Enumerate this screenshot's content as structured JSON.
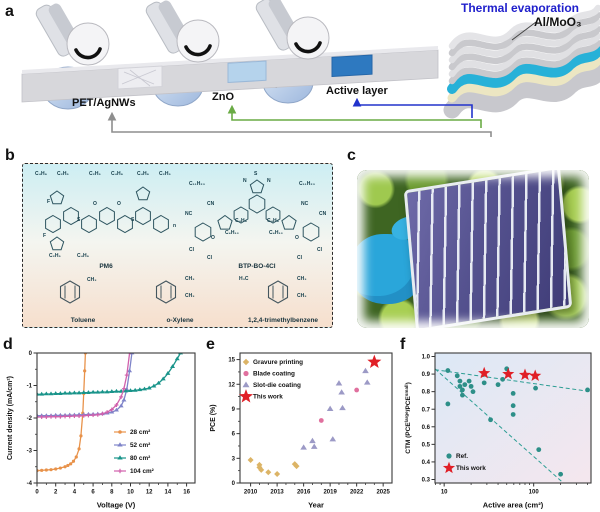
{
  "panels": {
    "a": {
      "label": "a",
      "annotations": {
        "thermal": "Thermal evaporation",
        "almoo3": "Al/MoO₃",
        "pet": "PET/AgNWs",
        "zno": "ZnO",
        "active": "Active layer"
      }
    },
    "b": {
      "label": "b",
      "molecules": {
        "pm6": {
          "name": "PM6",
          "labels": [
            "C₄H₉",
            "C₂H₅",
            "C₂H₅",
            "C₄H₉",
            "C₄H₉",
            "C₂H₅",
            "F",
            "O",
            "O",
            "S",
            "S",
            "F",
            "C₂H₅",
            "C₄H₉",
            "n"
          ]
        },
        "btp": {
          "name": "BTP-BO-4Cl",
          "labels": [
            "C₁₁H₂₃",
            "C₁₁H₂₃",
            "S",
            "N",
            "N",
            "CN",
            "NC",
            "NC",
            "CN",
            "C₄H₉",
            "C₄H₉",
            "C₆H₁₃",
            "C₆H₁₃",
            "O",
            "O",
            "Cl",
            "Cl",
            "Cl",
            "Cl"
          ]
        },
        "toluene": {
          "name": "Toluene",
          "labels": [
            "CH₃"
          ]
        },
        "oxylene": {
          "name": "o-Xylene",
          "labels": [
            "CH₃",
            "CH₃"
          ]
        },
        "tmb": {
          "name": "1,2,4-trimethylbenzene",
          "labels": [
            "H₃C",
            "CH₃",
            "CH₃"
          ]
        }
      }
    },
    "c": {
      "label": "c"
    },
    "d": {
      "label": "d"
    },
    "e": {
      "label": "e"
    },
    "f": {
      "label": "f"
    }
  },
  "colors": {
    "thermal_text": "#2020cc",
    "arrow_blue": "#2233cc",
    "arrow_green": "#6aab45",
    "arrow_gray": "#8e8e8e",
    "glove": "#2aa6da",
    "module_body": "#55528f",
    "stack_cyan": "#27b1d8",
    "stack_cream": "#ece6c2"
  },
  "chart_data": [
    {
      "id": "d",
      "type": "line",
      "xlabel": "Voltage (V)",
      "ylabel": "Current density (mA/cm²)",
      "xlim": [
        0,
        16.9
      ],
      "ylim": [
        -4,
        0
      ],
      "xticks": [
        0,
        2,
        4,
        6,
        8,
        10,
        12,
        14,
        16
      ],
      "xminor": [
        1,
        3,
        5,
        7,
        9,
        11,
        13,
        15
      ],
      "yticks": [
        0,
        -1,
        -2,
        -3,
        -4
      ],
      "yminor": [
        -0.5,
        -1.5,
        -2.5,
        -3.5
      ],
      "legend_position": "right-bottom",
      "series": [
        {
          "name": "28 cm²",
          "color": "#E8924A",
          "marker": "circle",
          "points": [
            [
              0,
              -3.62
            ],
            [
              0.5,
              -3.61
            ],
            [
              1,
              -3.6
            ],
            [
              1.5,
              -3.59
            ],
            [
              2,
              -3.57
            ],
            [
              2.5,
              -3.54
            ],
            [
              3,
              -3.5
            ],
            [
              3.3,
              -3.46
            ],
            [
              3.6,
              -3.41
            ],
            [
              3.9,
              -3.33
            ],
            [
              4.2,
              -3.2
            ],
            [
              4.5,
              -2.95
            ],
            [
              4.7,
              -2.55
            ],
            [
              4.9,
              -1.85
            ],
            [
              5.0,
              -1.25
            ],
            [
              5.1,
              -0.55
            ],
            [
              5.18,
              0
            ]
          ]
        },
        {
          "name": "52 cm²",
          "color": "#7F84C9",
          "marker": "triangle",
          "points": [
            [
              0,
              -1.93
            ],
            [
              0.5,
              -1.93
            ],
            [
              1,
              -1.93
            ],
            [
              1.5,
              -1.93
            ],
            [
              2,
              -1.92
            ],
            [
              2.5,
              -1.92
            ],
            [
              3,
              -1.92
            ],
            [
              3.5,
              -1.91
            ],
            [
              4,
              -1.91
            ],
            [
              4.5,
              -1.9
            ],
            [
              5,
              -1.9
            ],
            [
              5.5,
              -1.89
            ],
            [
              6,
              -1.89
            ],
            [
              6.5,
              -1.88
            ],
            [
              7,
              -1.87
            ],
            [
              7.5,
              -1.85
            ],
            [
              8,
              -1.82
            ],
            [
              8.5,
              -1.76
            ],
            [
              9,
              -1.63
            ],
            [
              9.3,
              -1.45
            ],
            [
              9.6,
              -1.12
            ],
            [
              9.9,
              -0.55
            ],
            [
              10.15,
              0
            ]
          ]
        },
        {
          "name": "80 cm²",
          "color": "#19948A",
          "marker": "triangle",
          "points": [
            [
              0,
              -1.27
            ],
            [
              0.5,
              -1.27
            ],
            [
              1,
              -1.26
            ],
            [
              1.5,
              -1.26
            ],
            [
              2,
              -1.25
            ],
            [
              2.5,
              -1.25
            ],
            [
              3,
              -1.24
            ],
            [
              3.5,
              -1.24
            ],
            [
              4,
              -1.23
            ],
            [
              4.5,
              -1.23
            ],
            [
              5,
              -1.22
            ],
            [
              5.5,
              -1.22
            ],
            [
              6,
              -1.21
            ],
            [
              6.5,
              -1.21
            ],
            [
              7,
              -1.2
            ],
            [
              7.5,
              -1.2
            ],
            [
              8,
              -1.19
            ],
            [
              8.5,
              -1.18
            ],
            [
              9,
              -1.18
            ],
            [
              9.5,
              -1.17
            ],
            [
              10,
              -1.16
            ],
            [
              10.5,
              -1.15
            ],
            [
              11,
              -1.13
            ],
            [
              11.5,
              -1.11
            ],
            [
              12,
              -1.08
            ],
            [
              12.5,
              -1.02
            ],
            [
              13,
              -0.93
            ],
            [
              13.5,
              -0.8
            ],
            [
              14,
              -0.63
            ],
            [
              14.5,
              -0.42
            ],
            [
              15,
              -0.18
            ],
            [
              15.35,
              0
            ]
          ]
        },
        {
          "name": "104 cm²",
          "color": "#D161AC",
          "marker": "plus",
          "points": [
            [
              0,
              -1.97
            ],
            [
              0.5,
              -1.97
            ],
            [
              1,
              -1.97
            ],
            [
              1.5,
              -1.96
            ],
            [
              2,
              -1.96
            ],
            [
              2.5,
              -1.96
            ],
            [
              3,
              -1.95
            ],
            [
              3.5,
              -1.95
            ],
            [
              4,
              -1.94
            ],
            [
              4.5,
              -1.94
            ],
            [
              5,
              -1.93
            ],
            [
              5.5,
              -1.92
            ],
            [
              6,
              -1.91
            ],
            [
              6.5,
              -1.9
            ],
            [
              7,
              -1.87
            ],
            [
              7.5,
              -1.82
            ],
            [
              8,
              -1.74
            ],
            [
              8.5,
              -1.6
            ],
            [
              9,
              -1.35
            ],
            [
              9.3,
              -1.1
            ],
            [
              9.6,
              -0.68
            ],
            [
              9.9,
              0
            ]
          ]
        }
      ]
    },
    {
      "id": "e",
      "type": "scatter",
      "xlabel": "Year",
      "ylabel": "PCE (%)",
      "xlim": [
        2008.8,
        2026
      ],
      "ylim": [
        0,
        15.8
      ],
      "xticks": [
        2010,
        2013,
        2016,
        2019,
        2022,
        2025
      ],
      "xminor": [
        2011,
        2012,
        2014,
        2015,
        2017,
        2018,
        2020,
        2021,
        2023,
        2024
      ],
      "yticks": [
        0,
        3,
        6,
        9,
        12,
        15
      ],
      "yminor": [
        1.5,
        4.5,
        7.5,
        10.5,
        13.5
      ],
      "legend_position": "top-left",
      "series": [
        {
          "name": "Gravure printing",
          "color": "#DCB466",
          "marker": "diamond",
          "points": [
            [
              2010,
              2.8
            ],
            [
              2011,
              2.2
            ],
            [
              2011,
              1.9
            ],
            [
              2011.2,
              1.6
            ],
            [
              2012,
              1.3
            ],
            [
              2013,
              1.1
            ],
            [
              2015,
              2.3
            ],
            [
              2015.2,
              2.05
            ]
          ]
        },
        {
          "name": "Blade coating",
          "color": "#E0709E",
          "marker": "circle",
          "points": [
            [
              2018,
              7.6
            ],
            [
              2022,
              11.3
            ]
          ]
        },
        {
          "name": "Slot-die coating",
          "color": "#9C9AC6",
          "marker": "triangle",
          "points": [
            [
              2016,
              4.3
            ],
            [
              2017,
              5.1
            ],
            [
              2017.2,
              4.4
            ],
            [
              2019,
              9.0
            ],
            [
              2019.3,
              5.3
            ],
            [
              2020,
              12.1
            ],
            [
              2020.3,
              11.0
            ],
            [
              2020.4,
              9.1
            ],
            [
              2023,
              13.6
            ],
            [
              2023.2,
              12.2
            ]
          ]
        },
        {
          "name": "This work",
          "color": "#E01F26",
          "marker": "star",
          "size": 5,
          "points": [
            [
              2024,
              14.7
            ]
          ]
        }
      ]
    },
    {
      "id": "f",
      "type": "scatter",
      "xlog": true,
      "xlabel": "Active area (cm²)",
      "ylabel_parts": [
        "CTM (PCE",
        "large",
        "/PCE",
        "small",
        ")"
      ],
      "xlim": [
        7.9,
        437
      ],
      "ylim": [
        0.28,
        1.02
      ],
      "xticks": [
        10,
        100
      ],
      "xminor": [
        8,
        9,
        20,
        30,
        40,
        50,
        60,
        70,
        80,
        90,
        200,
        300,
        400
      ],
      "yticks": [
        1.0,
        0.9,
        0.8,
        0.7,
        0.6,
        0.5,
        0.4,
        0.3
      ],
      "ydec": 1,
      "bg": [
        "#dce8f6",
        "#f5e7ee"
      ],
      "trend_color": "#2D9E94",
      "trendlines": [
        {
          "x1": 7.9,
          "y1": 0.925,
          "x2": 437,
          "y2": 0.8
        },
        {
          "x1": 7.9,
          "y1": 0.93,
          "x2": 215,
          "y2": 0.28
        }
      ],
      "legend_position": "bottom-left",
      "series": [
        {
          "name": "Ref.",
          "color": "#2D8F88",
          "marker": "circle",
          "points": [
            [
              11,
              0.92
            ],
            [
              11,
              0.73
            ],
            [
              14,
              0.89
            ],
            [
              15,
              0.86
            ],
            [
              15,
              0.83
            ],
            [
              16,
              0.81
            ],
            [
              16,
              0.78
            ],
            [
              17,
              0.84
            ],
            [
              19,
              0.86
            ],
            [
              20,
              0.83
            ],
            [
              21,
              0.8
            ],
            [
              28,
              0.85
            ],
            [
              33,
              0.64
            ],
            [
              40,
              0.84
            ],
            [
              45,
              0.87
            ],
            [
              50,
              0.93
            ],
            [
              59,
              0.79
            ],
            [
              59,
              0.72
            ],
            [
              59,
              0.67
            ],
            [
              105,
              0.82
            ],
            [
              114,
              0.47
            ],
            [
              200,
              0.33
            ],
            [
              400,
              0.81
            ]
          ]
        },
        {
          "name": "This work",
          "color": "#E01F26",
          "marker": "star",
          "size": 4,
          "points": [
            [
              28,
              0.905
            ],
            [
              52,
              0.9
            ],
            [
              80,
              0.895
            ],
            [
              104,
              0.89
            ]
          ]
        }
      ]
    }
  ]
}
